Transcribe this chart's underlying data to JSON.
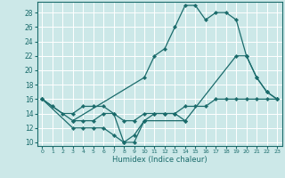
{
  "xlabel": "Humidex (Indice chaleur)",
  "bg_color": "#cce8e8",
  "line_color": "#1a6b6b",
  "grid_color": "#ffffff",
  "xlim": [
    -0.5,
    23.5
  ],
  "ylim": [
    9.5,
    29.5
  ],
  "xticks": [
    0,
    1,
    2,
    3,
    4,
    5,
    6,
    7,
    8,
    9,
    10,
    11,
    12,
    13,
    14,
    15,
    16,
    17,
    18,
    19,
    20,
    21,
    22,
    23
  ],
  "yticks": [
    10,
    12,
    14,
    16,
    18,
    20,
    22,
    24,
    26,
    28
  ],
  "lines": [
    {
      "x": [
        0,
        1,
        2,
        3,
        4,
        5,
        6,
        7,
        8,
        9,
        10,
        11,
        12,
        13,
        14,
        15,
        16,
        17,
        18,
        19,
        20,
        21,
        22,
        23
      ],
      "y": [
        16,
        15,
        14,
        14,
        15,
        15,
        15,
        14,
        13,
        13,
        14,
        14,
        14,
        14,
        15,
        15,
        15,
        16,
        16,
        16,
        16,
        16,
        16,
        16
      ]
    },
    {
      "x": [
        0,
        3,
        10,
        11,
        12,
        13,
        14,
        15,
        16,
        17,
        18,
        19,
        20,
        21,
        22,
        23
      ],
      "y": [
        16,
        13,
        19,
        22,
        23,
        26,
        29,
        29,
        27,
        28,
        28,
        27,
        22,
        19,
        17,
        16
      ]
    },
    {
      "x": [
        0,
        3,
        4,
        5,
        6,
        7,
        8,
        9,
        10,
        14,
        19,
        20,
        21,
        22,
        23
      ],
      "y": [
        16,
        12,
        12,
        12,
        12,
        11,
        10,
        10,
        13,
        13,
        22,
        22,
        19,
        17,
        16
      ]
    },
    {
      "x": [
        3,
        4,
        5,
        6,
        7,
        8,
        9,
        10,
        11,
        12,
        13,
        14
      ],
      "y": [
        13,
        13,
        13,
        14,
        14,
        10,
        11,
        13,
        14,
        14,
        14,
        13
      ]
    }
  ]
}
